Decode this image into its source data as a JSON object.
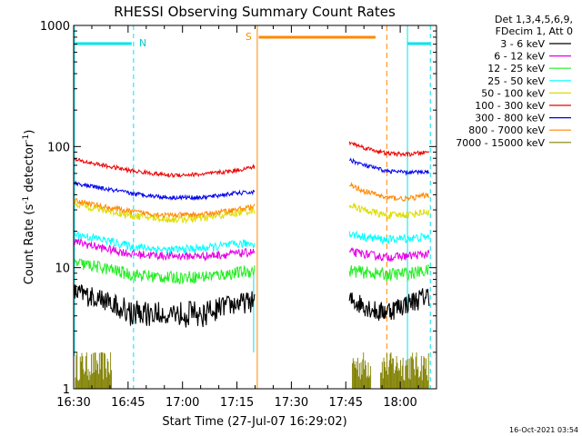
{
  "chart_data": {
    "type": "line",
    "title": "RHESSI Observing Summary Count Rates",
    "xlabel": "Start Time (27-Jul-07 16:29:02)",
    "ylabel_parts": [
      "Count Rate (s",
      "-1",
      " detector",
      "-1",
      ")"
    ],
    "x_unit": "minutes after 16:30",
    "xlim": [
      0,
      100
    ],
    "ylim": [
      1,
      1000
    ],
    "y_scale": "log",
    "x_tick_labels": [
      {
        "x": 0,
        "label": "16:30"
      },
      {
        "x": 15,
        "label": "16:45"
      },
      {
        "x": 30,
        "label": "17:00"
      },
      {
        "x": 45,
        "label": "17:15"
      },
      {
        "x": 60,
        "label": "17:30"
      },
      {
        "x": 75,
        "label": "17:45"
      },
      {
        "x": 90,
        "label": "18:00"
      }
    ],
    "y_tick_labels": [
      {
        "y": 1,
        "label": "1"
      },
      {
        "y": 10,
        "label": "10"
      },
      {
        "y": 100,
        "label": "100"
      },
      {
        "y": 1000,
        "label": "1000"
      }
    ],
    "segments": [
      [
        0,
        50
      ],
      [
        76,
        98
      ]
    ],
    "series": [
      {
        "name": "3 - 6 keV",
        "color": "#000000",
        "seg1": [
          [
            0,
            6.3
          ],
          [
            8,
            5.6
          ],
          [
            16,
            4.5
          ],
          [
            26,
            4.3
          ],
          [
            36,
            4.5
          ],
          [
            44,
            5.0
          ],
          [
            50,
            5.4
          ]
        ],
        "seg2": [
          [
            76,
            5.4
          ],
          [
            80,
            5.0
          ],
          [
            84,
            4.3
          ],
          [
            88,
            4.6
          ],
          [
            94,
            5.4
          ],
          [
            98,
            6.0
          ]
        ],
        "noise": 0.2
      },
      {
        "name": "6 - 12 keV",
        "color": "#e600e6",
        "seg1": [
          [
            0,
            16.5
          ],
          [
            8,
            14.5
          ],
          [
            16,
            13.0
          ],
          [
            26,
            12.5
          ],
          [
            36,
            12.5
          ],
          [
            44,
            13.0
          ],
          [
            50,
            13.5
          ]
        ],
        "seg2": [
          [
            76,
            13.5
          ],
          [
            80,
            13.0
          ],
          [
            86,
            12.2
          ],
          [
            92,
            12.5
          ],
          [
            98,
            13.0
          ]
        ],
        "noise": 0.08
      },
      {
        "name": "12 - 25 keV",
        "color": "#22ee22",
        "seg1": [
          [
            0,
            11.0
          ],
          [
            8,
            10.0
          ],
          [
            16,
            8.8
          ],
          [
            26,
            8.3
          ],
          [
            36,
            8.5
          ],
          [
            44,
            9.0
          ],
          [
            50,
            9.5
          ]
        ],
        "seg2": [
          [
            76,
            9.5
          ],
          [
            80,
            9.2
          ],
          [
            86,
            8.8
          ],
          [
            92,
            9.0
          ],
          [
            98,
            9.5
          ]
        ],
        "noise": 0.12
      },
      {
        "name": "25 - 50 keV",
        "color": "#00ffff",
        "seg1": [
          [
            0,
            19.0
          ],
          [
            8,
            17.0
          ],
          [
            16,
            15.0
          ],
          [
            26,
            14.0
          ],
          [
            36,
            14.5
          ],
          [
            44,
            15.5
          ],
          [
            50,
            16.0
          ]
        ],
        "seg2": [
          [
            76,
            19.0
          ],
          [
            80,
            18.0
          ],
          [
            86,
            17.0
          ],
          [
            92,
            17.5
          ],
          [
            98,
            18.0
          ]
        ],
        "noise": 0.08
      },
      {
        "name": "50 - 100 keV",
        "color": "#dddd00",
        "seg1": [
          [
            0,
            34.0
          ],
          [
            8,
            30.0
          ],
          [
            16,
            27.0
          ],
          [
            26,
            25.0
          ],
          [
            36,
            25.5
          ],
          [
            44,
            28.0
          ],
          [
            50,
            30.0
          ]
        ],
        "seg2": [
          [
            76,
            33.0
          ],
          [
            80,
            30.0
          ],
          [
            86,
            27.0
          ],
          [
            92,
            27.5
          ],
          [
            98,
            29.0
          ]
        ],
        "noise": 0.07
      },
      {
        "name": "100 - 300 keV",
        "color": "#ee0000",
        "seg1": [
          [
            0,
            78.0
          ],
          [
            8,
            70.0
          ],
          [
            16,
            63.0
          ],
          [
            26,
            58.0
          ],
          [
            36,
            59.0
          ],
          [
            44,
            63.0
          ],
          [
            50,
            68.0
          ]
        ],
        "seg2": [
          [
            76,
            108.0
          ],
          [
            80,
            98.0
          ],
          [
            86,
            88.0
          ],
          [
            92,
            86.0
          ],
          [
            98,
            90.0
          ]
        ],
        "noise": 0.04
      },
      {
        "name": "300 - 800 keV",
        "color": "#0000ee",
        "seg1": [
          [
            0,
            50.0
          ],
          [
            8,
            45.0
          ],
          [
            16,
            41.0
          ],
          [
            26,
            38.0
          ],
          [
            36,
            38.0
          ],
          [
            44,
            41.0
          ],
          [
            50,
            42.0
          ]
        ],
        "seg2": [
          [
            76,
            78.0
          ],
          [
            80,
            70.0
          ],
          [
            86,
            63.0
          ],
          [
            92,
            61.0
          ],
          [
            98,
            62.0
          ]
        ],
        "noise": 0.04
      },
      {
        "name": "800 - 7000 keV",
        "color": "#ff8800",
        "seg1": [
          [
            0,
            36.0
          ],
          [
            8,
            32.0
          ],
          [
            16,
            29.0
          ],
          [
            26,
            27.0
          ],
          [
            36,
            27.5
          ],
          [
            44,
            30.0
          ],
          [
            50,
            32.0
          ]
        ],
        "seg2": [
          [
            76,
            48.0
          ],
          [
            80,
            43.0
          ],
          [
            86,
            38.0
          ],
          [
            92,
            37.0
          ],
          [
            98,
            40.0
          ]
        ],
        "noise": 0.05
      },
      {
        "name": "7000 - 15000 keV",
        "color": "#808000",
        "noise": 0
      }
    ],
    "legend": {
      "header": [
        "Det 1,3,4,5,6,9,",
        "FDecim 1, Att 0"
      ],
      "position": "right"
    },
    "annotations": [
      {
        "label": "N",
        "color": "#00cccc"
      },
      {
        "label": "S",
        "color": "#ff8800"
      }
    ],
    "timestamp": "16-Oct-2021 03:54"
  }
}
